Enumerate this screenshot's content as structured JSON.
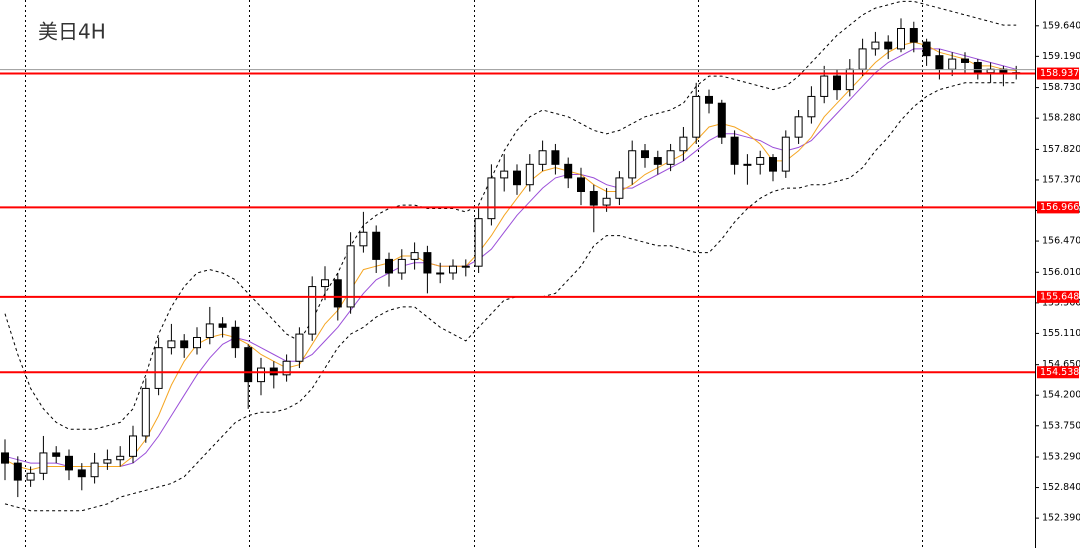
{
  "chart_data": {
    "type": "candlestick",
    "title": "美日4H",
    "ylim": [
      151.95,
      160.02
    ],
    "yticks": [
      {
        "value": 159.64,
        "label": "159.640"
      },
      {
        "value": 159.19,
        "label": "159.190"
      },
      {
        "value": 158.73,
        "label": "158.730"
      },
      {
        "value": 158.28,
        "label": "158.280"
      },
      {
        "value": 157.82,
        "label": "157.820"
      },
      {
        "value": 157.37,
        "label": "157.370"
      },
      {
        "value": 156.92,
        "label": "156.920"
      },
      {
        "value": 156.47,
        "label": "156.470"
      },
      {
        "value": 156.01,
        "label": "156.010"
      },
      {
        "value": 155.56,
        "label": "155.560"
      },
      {
        "value": 155.11,
        "label": "155.110"
      },
      {
        "value": 154.65,
        "label": "154.650"
      },
      {
        "value": 154.2,
        "label": "154.200"
      },
      {
        "value": 153.75,
        "label": "153.750"
      },
      {
        "value": 153.29,
        "label": "153.290"
      },
      {
        "value": 152.84,
        "label": "152.840"
      },
      {
        "value": 152.39,
        "label": "152.390"
      }
    ],
    "open": [
      153.35,
      153.2,
      152.95,
      153.05,
      153.35,
      153.3,
      153.1,
      153.0,
      153.2,
      153.25,
      153.3,
      153.6,
      154.3,
      154.9,
      155.0,
      154.9,
      155.05,
      155.25,
      155.2,
      154.9,
      154.4,
      154.6,
      154.5,
      154.7,
      155.1,
      155.8,
      155.9,
      155.5,
      156.4,
      156.6,
      156.2,
      156.0,
      156.2,
      156.3,
      156.0,
      156.0,
      156.1,
      156.1,
      156.8,
      157.4,
      157.5,
      157.3,
      157.6,
      157.8,
      157.6,
      157.4,
      157.2,
      157.0,
      157.1,
      157.4,
      157.8,
      157.7,
      157.6,
      157.8,
      158.0,
      158.6,
      158.5,
      158.0,
      157.6,
      157.6,
      157.7,
      157.5,
      158.0,
      158.3,
      158.6,
      158.9,
      158.7,
      159.0,
      159.3,
      159.4,
      159.3,
      159.6,
      159.4,
      159.2,
      159.0,
      159.15,
      159.1,
      158.95,
      159.0,
      158.95
    ],
    "high": [
      153.55,
      153.3,
      153.15,
      153.6,
      153.45,
      153.4,
      153.2,
      153.35,
      153.4,
      153.45,
      153.75,
      154.45,
      155.05,
      155.25,
      155.1,
      155.2,
      155.5,
      155.35,
      155.3,
      154.95,
      154.75,
      154.7,
      154.8,
      155.2,
      155.95,
      156.1,
      156.0,
      156.6,
      156.9,
      156.7,
      156.3,
      156.35,
      156.45,
      156.4,
      156.15,
      156.2,
      156.2,
      156.95,
      157.6,
      157.75,
      157.6,
      157.75,
      157.95,
      157.9,
      157.7,
      157.55,
      157.3,
      157.25,
      157.5,
      157.95,
      157.9,
      157.8,
      157.9,
      158.15,
      158.8,
      158.7,
      158.55,
      158.1,
      157.75,
      157.8,
      157.75,
      158.1,
      158.4,
      158.75,
      159.05,
      159.0,
      159.15,
      159.45,
      159.55,
      159.5,
      159.75,
      159.7,
      159.45,
      159.3,
      159.25,
      159.25,
      159.15,
      159.1,
      159.05,
      159.05
    ],
    "low": [
      152.95,
      152.7,
      152.85,
      152.95,
      153.2,
      152.95,
      152.8,
      152.9,
      153.1,
      153.15,
      153.2,
      153.5,
      154.2,
      154.8,
      154.75,
      154.8,
      154.95,
      155.05,
      154.75,
      154.0,
      154.2,
      154.3,
      154.4,
      154.6,
      155.0,
      155.6,
      155.3,
      155.4,
      156.3,
      156.0,
      155.8,
      155.9,
      156.05,
      155.7,
      155.85,
      155.9,
      155.95,
      156.0,
      156.7,
      157.2,
      157.15,
      157.2,
      157.5,
      157.45,
      157.25,
      157.0,
      156.6,
      156.9,
      157.0,
      157.3,
      157.55,
      157.45,
      157.5,
      157.65,
      157.9,
      158.35,
      157.9,
      157.45,
      157.3,
      157.45,
      157.35,
      157.4,
      157.9,
      158.2,
      158.5,
      158.55,
      158.6,
      158.9,
      159.2,
      159.15,
      159.25,
      159.25,
      159.05,
      158.85,
      158.9,
      158.95,
      158.85,
      158.8,
      158.75,
      158.85
    ],
    "close": [
      153.2,
      152.95,
      153.05,
      153.35,
      153.3,
      153.1,
      153.0,
      153.2,
      153.25,
      153.3,
      153.6,
      154.3,
      154.9,
      155.0,
      154.9,
      155.05,
      155.25,
      155.2,
      154.9,
      154.4,
      154.6,
      154.5,
      154.7,
      155.1,
      155.8,
      155.9,
      155.5,
      156.4,
      156.6,
      156.2,
      156.0,
      156.2,
      156.3,
      156.0,
      156.0,
      156.1,
      156.1,
      156.8,
      157.4,
      157.5,
      157.3,
      157.6,
      157.8,
      157.6,
      157.4,
      157.2,
      157.0,
      157.1,
      157.4,
      157.8,
      157.7,
      157.6,
      157.8,
      158.0,
      158.6,
      158.5,
      158.0,
      157.6,
      157.6,
      157.7,
      157.5,
      158.0,
      158.3,
      158.6,
      158.9,
      158.7,
      159.0,
      159.3,
      159.4,
      159.3,
      159.6,
      159.4,
      159.2,
      159.0,
      159.15,
      159.1,
      158.95,
      159.0,
      158.95,
      158.95
    ],
    "lines": [
      {
        "color": "#000000",
        "style": "dashed",
        "values": [
          155.4,
          154.8,
          154.3,
          154.0,
          153.8,
          153.7,
          153.7,
          153.7,
          153.75,
          153.8,
          154.0,
          154.5,
          155.1,
          155.5,
          155.8,
          156.0,
          156.05,
          156.0,
          155.9,
          155.7,
          155.5,
          155.3,
          155.1,
          155.0,
          155.3,
          155.7,
          156.0,
          156.4,
          156.7,
          156.85,
          156.95,
          157.0,
          157.0,
          156.95,
          156.95,
          156.95,
          156.9,
          157.0,
          157.4,
          157.8,
          158.1,
          158.3,
          158.4,
          158.35,
          158.3,
          158.2,
          158.1,
          158.05,
          158.1,
          158.2,
          158.3,
          158.35,
          158.4,
          158.5,
          158.75,
          158.9,
          158.9,
          158.85,
          158.8,
          158.75,
          158.7,
          158.75,
          158.9,
          159.1,
          159.3,
          159.5,
          159.65,
          159.8,
          159.9,
          159.95,
          160.0,
          160.0,
          159.95,
          159.9,
          159.85,
          159.8,
          159.75,
          159.7,
          159.65,
          159.65
        ]
      },
      {
        "color": "#000000",
        "style": "dashed",
        "values": [
          152.6,
          152.55,
          152.5,
          152.5,
          152.5,
          152.5,
          152.5,
          152.55,
          152.6,
          152.7,
          152.75,
          152.8,
          152.85,
          152.9,
          153.0,
          153.2,
          153.4,
          153.6,
          153.8,
          153.9,
          153.95,
          153.95,
          154.0,
          154.1,
          154.3,
          154.6,
          154.9,
          155.1,
          155.2,
          155.35,
          155.45,
          155.5,
          155.5,
          155.35,
          155.2,
          155.1,
          155.0,
          155.2,
          155.4,
          155.6,
          155.65,
          155.65,
          155.65,
          155.7,
          155.9,
          156.1,
          156.4,
          156.55,
          156.55,
          156.5,
          156.45,
          156.4,
          156.4,
          156.35,
          156.3,
          156.3,
          156.5,
          156.75,
          156.95,
          157.1,
          157.2,
          157.25,
          157.25,
          157.3,
          157.3,
          157.35,
          157.4,
          157.55,
          157.8,
          158.0,
          158.25,
          158.45,
          158.6,
          158.7,
          158.75,
          158.8,
          158.8,
          158.8,
          158.8,
          158.8
        ]
      },
      {
        "color": "#9b4fd9",
        "style": "solid",
        "values": [
          153.3,
          153.25,
          153.2,
          153.2,
          153.2,
          153.15,
          153.15,
          153.15,
          153.15,
          153.15,
          153.2,
          153.35,
          153.6,
          153.9,
          154.2,
          154.5,
          154.75,
          154.95,
          155.05,
          155.0,
          154.9,
          154.8,
          154.7,
          154.7,
          154.8,
          155.0,
          155.2,
          155.45,
          155.7,
          155.9,
          156.0,
          156.1,
          156.15,
          156.15,
          156.1,
          156.1,
          156.1,
          156.2,
          156.35,
          156.6,
          156.85,
          157.05,
          157.25,
          157.4,
          157.45,
          157.45,
          157.4,
          157.3,
          157.25,
          157.25,
          157.35,
          157.45,
          157.55,
          157.65,
          157.8,
          157.95,
          158.05,
          158.05,
          158.0,
          157.95,
          157.85,
          157.8,
          157.85,
          157.95,
          158.15,
          158.35,
          158.55,
          158.75,
          158.95,
          159.1,
          159.2,
          159.3,
          159.3,
          159.3,
          159.25,
          159.2,
          159.15,
          159.1,
          159.05,
          159.0
        ]
      },
      {
        "color": "#f5a623",
        "style": "solid",
        "values": [
          153.25,
          153.15,
          153.1,
          153.15,
          153.15,
          153.15,
          153.15,
          153.15,
          153.15,
          153.15,
          153.3,
          153.55,
          153.9,
          154.35,
          154.7,
          154.95,
          155.05,
          155.1,
          155.05,
          154.95,
          154.8,
          154.7,
          154.6,
          154.65,
          154.95,
          155.25,
          155.45,
          155.75,
          156.05,
          156.1,
          156.15,
          156.25,
          156.25,
          156.15,
          156.1,
          156.1,
          156.1,
          156.3,
          156.55,
          156.85,
          157.1,
          157.35,
          157.5,
          157.55,
          157.5,
          157.45,
          157.3,
          157.2,
          157.2,
          157.3,
          157.45,
          157.55,
          157.65,
          157.75,
          157.95,
          158.15,
          158.2,
          158.15,
          158.05,
          157.9,
          157.65,
          157.65,
          157.8,
          158.0,
          158.3,
          158.5,
          158.7,
          158.9,
          159.1,
          159.25,
          159.35,
          159.4,
          159.35,
          159.25,
          159.2,
          159.15,
          159.05,
          159.05,
          159.0,
          158.98
        ]
      }
    ],
    "levels": [
      158.937,
      156.966,
      155.648,
      154.538
    ],
    "level_color": "#ff0000",
    "bull_color": "#ffffff",
    "bear_color": "#000000"
  }
}
